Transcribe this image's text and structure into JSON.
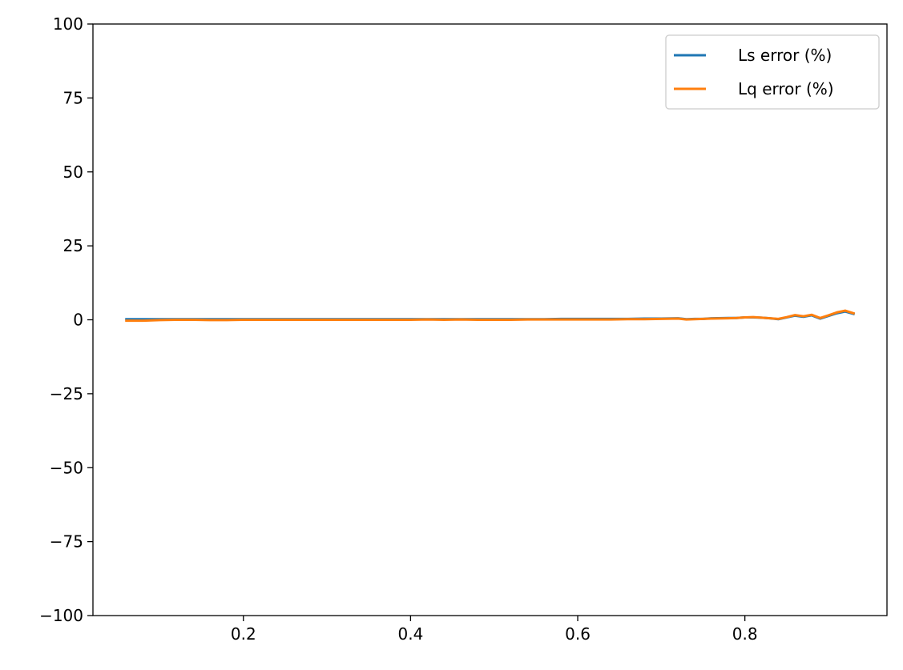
{
  "chart_data": {
    "type": "line",
    "title": "",
    "xlabel": "",
    "ylabel": "",
    "xlim": [
      0.02,
      0.97
    ],
    "ylim": [
      -100,
      100
    ],
    "xticks": [
      0.2,
      0.4,
      0.6,
      0.8
    ],
    "xtick_labels": [
      "0.2",
      "0.4",
      "0.6",
      "0.8"
    ],
    "yticks": [
      100,
      75,
      50,
      25,
      0,
      -25,
      -50,
      -75,
      -100
    ],
    "ytick_labels": [
      "100",
      "75",
      "50",
      "25",
      "0",
      "−25",
      "−50",
      "−75",
      "−100"
    ],
    "grid": false,
    "legend_position": "top-right",
    "x": [
      0.06,
      0.08,
      0.1,
      0.12,
      0.14,
      0.16,
      0.18,
      0.2,
      0.22,
      0.24,
      0.26,
      0.28,
      0.3,
      0.32,
      0.34,
      0.36,
      0.38,
      0.4,
      0.42,
      0.44,
      0.46,
      0.48,
      0.5,
      0.52,
      0.54,
      0.56,
      0.58,
      0.6,
      0.62,
      0.64,
      0.66,
      0.68,
      0.7,
      0.72,
      0.73,
      0.74,
      0.75,
      0.76,
      0.78,
      0.79,
      0.8,
      0.81,
      0.82,
      0.83,
      0.84,
      0.85,
      0.86,
      0.87,
      0.88,
      0.89,
      0.9,
      0.91,
      0.92,
      0.93
    ],
    "series": [
      {
        "name": "Ls error (%)",
        "color": "#1f77b4",
        "values": [
          0.2,
          0.2,
          0.2,
          0.2,
          0.2,
          0.2,
          0.2,
          0.2,
          0.2,
          0.2,
          0.2,
          0.2,
          0.2,
          0.2,
          0.2,
          0.2,
          0.2,
          0.2,
          0.2,
          0.2,
          0.2,
          0.2,
          0.2,
          0.2,
          0.2,
          0.2,
          0.3,
          0.3,
          0.3,
          0.3,
          0.3,
          0.4,
          0.4,
          0.5,
          0.2,
          0.3,
          0.3,
          0.5,
          0.6,
          0.6,
          0.8,
          0.8,
          0.7,
          0.5,
          0.2,
          0.8,
          1.4,
          1.0,
          1.5,
          0.4,
          1.3,
          2.2,
          2.8,
          2.0
        ]
      },
      {
        "name": "Lq error (%)",
        "color": "#ff7f0e",
        "values": [
          -0.3,
          -0.3,
          -0.1,
          0.0,
          0.0,
          -0.1,
          -0.1,
          0.0,
          0.0,
          0.0,
          0.0,
          0.0,
          0.0,
          0.0,
          0.0,
          0.0,
          0.0,
          0.0,
          0.1,
          0.0,
          0.1,
          0.0,
          0.0,
          0.0,
          0.1,
          0.1,
          0.1,
          0.1,
          0.1,
          0.1,
          0.2,
          0.2,
          0.3,
          0.4,
          0.1,
          0.2,
          0.3,
          0.4,
          0.5,
          0.6,
          0.8,
          0.9,
          0.7,
          0.5,
          0.3,
          0.9,
          1.6,
          1.2,
          1.7,
          0.6,
          1.5,
          2.5,
          3.1,
          2.2
        ]
      }
    ]
  }
}
